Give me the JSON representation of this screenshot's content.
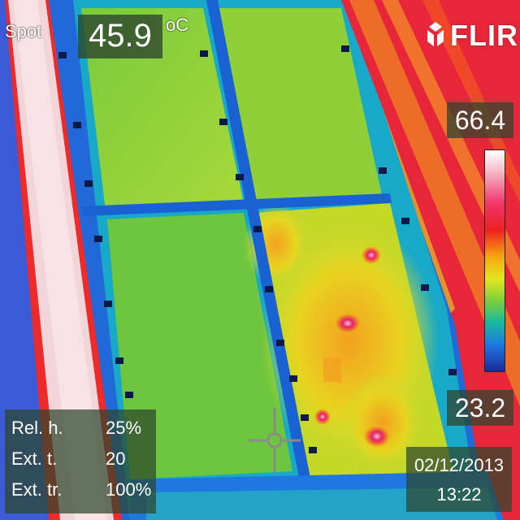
{
  "spot": {
    "label": "Spot",
    "value": "45.9",
    "unit": "oC"
  },
  "brand": {
    "name": "FLIR"
  },
  "scale": {
    "max": "66.4",
    "min": "23.2",
    "palette": [
      "#ffffff",
      "#f0356a",
      "#ee2020",
      "#f5a410",
      "#e6e620",
      "#7ed03a",
      "#18b8a0",
      "#1e78e0",
      "#1a2a9a"
    ]
  },
  "params": [
    {
      "label": "Rel. h.",
      "value": "25%"
    },
    {
      "label": "Ext. t.",
      "value": "20"
    },
    {
      "label": "Ext. tr.",
      "value": "100%"
    }
  ],
  "timestamp": {
    "date": "02/12/2013",
    "time": "13:22"
  }
}
